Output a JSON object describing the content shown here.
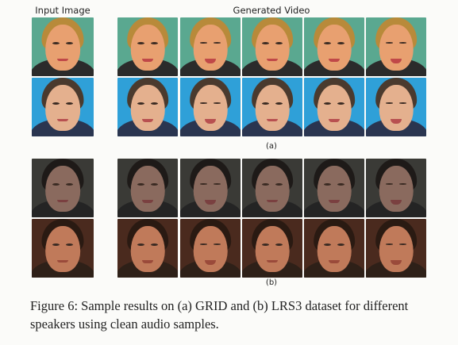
{
  "headers": {
    "input": "Input Image",
    "generated": "Generated Video"
  },
  "sublabels": {
    "a": "(a)",
    "b": "(b)"
  },
  "caption": "Figure 6: Sample results on (a) GRID and (b) LRS3 dataset for different speakers using clean audio samples.",
  "rows": [
    {
      "name": "grid-speaker-1",
      "bg": "#5aa890",
      "skin": "#e8a070",
      "hair": "#b88a3a",
      "shirt": "#2b2b2b",
      "lip": "#c04848"
    },
    {
      "name": "grid-speaker-2",
      "bg": "#2fa0d8",
      "skin": "#e4b08e",
      "hair": "#4a3a2e",
      "shirt": "#2a3550",
      "lip": "#b85050"
    },
    {
      "name": "lrs3-speaker-1",
      "bg": "#3a3a36",
      "skin": "#8a6a5e",
      "hair": "#1e1a18",
      "shirt": "#242424",
      "lip": "#7a4040"
    },
    {
      "name": "lrs3-speaker-2",
      "bg": "#4a2a1e",
      "skin": "#c07a5a",
      "hair": "#2a1a12",
      "shirt": "#2e2018",
      "lip": "#9a4a3a"
    }
  ]
}
